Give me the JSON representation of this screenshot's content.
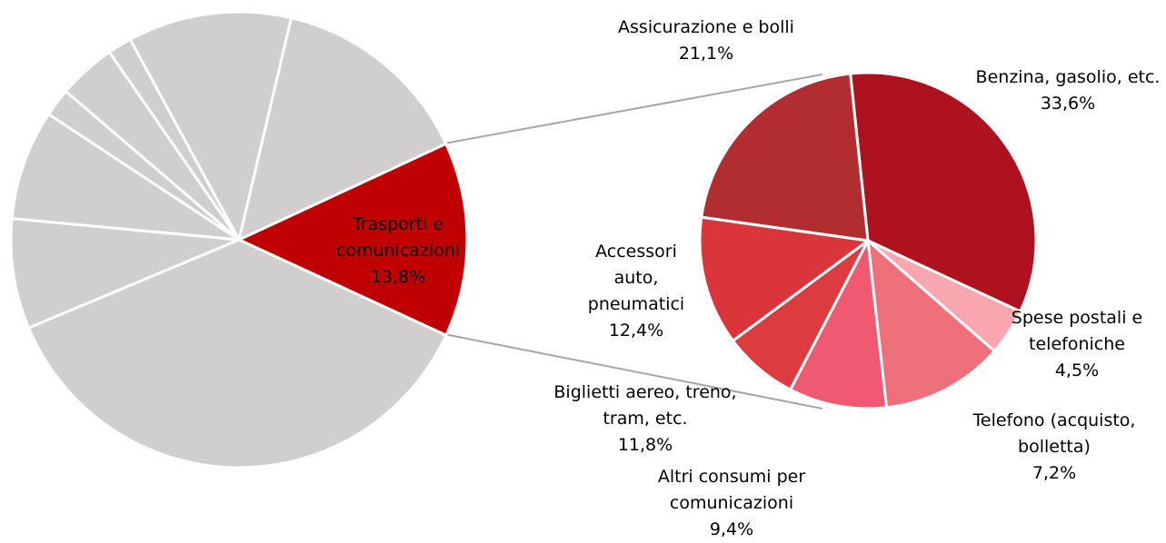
{
  "chart_data": [
    {
      "type": "pie",
      "categories": [
        "Trasporti e comunicazioni",
        null,
        null,
        null,
        null,
        null,
        null,
        null,
        null
      ],
      "values": [
        13.8,
        36.8,
        7.8,
        7.8,
        2.0,
        4.1,
        1.7,
        11.6,
        14.4
      ],
      "value_labels": [
        "13,8%",
        null,
        null,
        null,
        null,
        null,
        null,
        null,
        null
      ],
      "colors": [
        "#c00000",
        "#d0cece",
        "#d0cece",
        "#d0cece",
        "#d0cece",
        "#d0cece",
        "#d0cece",
        "#d0cece",
        "#d0cece"
      ]
    },
    {
      "type": "pie",
      "categories": [
        "Benzina, gasolio, etc.",
        "Spese postali e telefoniche",
        "Biglietti aereo, treno, tram, etc.",
        "Altri consumi per comunicazioni",
        "Telefono (acquisto, bolletta)",
        "Accessori auto, pneumatici",
        "Assicurazione e bolli"
      ],
      "values": [
        33.6,
        4.5,
        11.8,
        9.4,
        7.2,
        12.4,
        21.1
      ],
      "value_labels": [
        "33,6%",
        "4,5%",
        "11,8%",
        "9,4%",
        "7,2%",
        "12,4%",
        "21,1%"
      ],
      "colors": [
        "#ae121e",
        "#f8a7b0",
        "#ee707a",
        "#ef5a72",
        "#dc3b3f",
        "#d9353b",
        "#b22d30"
      ]
    }
  ]
}
